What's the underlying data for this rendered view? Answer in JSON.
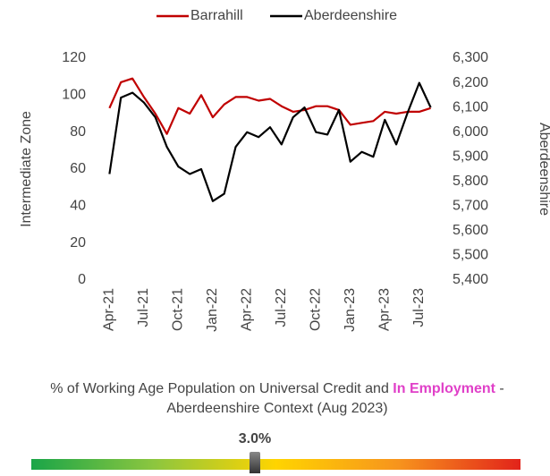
{
  "chart_data": {
    "type": "line",
    "categories": [
      "Apr-21",
      null,
      null,
      "Jul-21",
      null,
      null,
      "Oct-21",
      null,
      null,
      "Jan-22",
      null,
      null,
      "Apr-22",
      null,
      null,
      "Jul-22",
      null,
      null,
      "Oct-22",
      null,
      null,
      "Jan-23",
      null,
      null,
      "Apr-23",
      null,
      null,
      "Jul-23",
      null
    ],
    "series": [
      {
        "name": "Barrahill",
        "color": "#c00000",
        "values": [
          93,
          107,
          109,
          99,
          90,
          79,
          93,
          90,
          100,
          88,
          95,
          99,
          99,
          97,
          98,
          94,
          91,
          92,
          94,
          94,
          92,
          84,
          85,
          86,
          91,
          90,
          91,
          91,
          93
        ]
      },
      {
        "name": "Aberdeenshire",
        "color": "#000000",
        "axis": "y2",
        "values": [
          5830,
          6140,
          6160,
          6120,
          6060,
          5940,
          5860,
          5830,
          5850,
          5720,
          5750,
          5940,
          6000,
          5980,
          6020,
          5950,
          6060,
          6100,
          6000,
          5990,
          6090,
          5880,
          5920,
          5900,
          6050,
          5950,
          6080,
          6200,
          6100
        ]
      }
    ],
    "ylabel": "Intermediate Zone",
    "y2label": "Aberdeenshire",
    "ylim": [
      0,
      120
    ],
    "yticks": [
      0,
      20,
      40,
      60,
      80,
      100,
      120
    ],
    "y2lim": [
      5400,
      6300
    ],
    "y2ticks": [
      {
        "value": 5400,
        "label": "5,400"
      },
      {
        "value": 5500,
        "label": "5,500"
      },
      {
        "value": 5600,
        "label": "5,600"
      },
      {
        "value": 5700,
        "label": "5,700"
      },
      {
        "value": 5800,
        "label": "5,800"
      },
      {
        "value": 5900,
        "label": "5,900"
      },
      {
        "value": 6000,
        "label": "6,000"
      },
      {
        "value": 6100,
        "label": "6,100"
      },
      {
        "value": 6200,
        "label": "6,200"
      },
      {
        "value": 6300,
        "label": "6,300"
      }
    ],
    "legend": "top"
  },
  "context": {
    "title_start": "% of Working Age Population on Universal Credit and ",
    "title_highlight": "In Employment",
    "title_end": " - Aberdeenshire Context (Aug 2023)",
    "marker_label": "3.0%"
  }
}
